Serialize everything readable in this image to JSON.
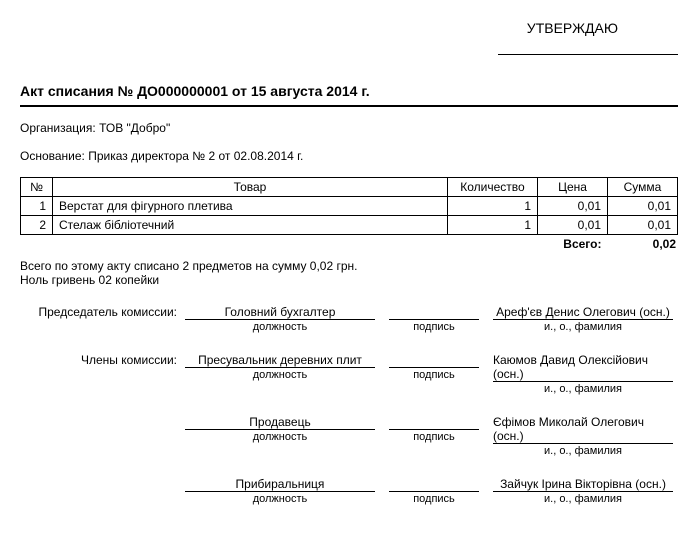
{
  "approve": "УТВЕРЖДАЮ",
  "title": "Акт списания № ДО000000001 от 15 августа 2014 г.",
  "org_label": "Организация:",
  "org_value": "ТОВ \"Добро\"",
  "basis_label": "Основание:",
  "basis_value": "Приказ директора № 2 от 02.08.2014 г.",
  "table": {
    "headers": {
      "num": "№",
      "name": "Товар",
      "qty": "Количество",
      "price": "Цена",
      "sum": "Сумма"
    },
    "rows": [
      {
        "num": "1",
        "name": "Верстат для фігурного плетива",
        "qty": "1",
        "price": "0,01",
        "sum": "0,01"
      },
      {
        "num": "2",
        "name": "Стелаж бібліотечний",
        "qty": "1",
        "price": "0,01",
        "sum": "0,01"
      }
    ],
    "total_label": "Всего:",
    "total_value": "0,02"
  },
  "summary1": "Всего по этому акту списано 2 предметов на сумму 0,02 грн.",
  "summary2": "Ноль гривень 02 копейки",
  "sig_labels": {
    "position": "должность",
    "sign": "подпись",
    "name": "и., о., фамилия"
  },
  "signatures": [
    {
      "role": "Председатель комиссии:",
      "position": "Головний бухгалтер",
      "name": "Ареф'єв Денис Олегович (осн.)"
    },
    {
      "role": "Члены комиссии:",
      "position": "Пресувальник деревних плит",
      "name": "Каюмов Давид Олексійович (осн.)"
    },
    {
      "role": "",
      "position": "Продавець",
      "name": "Єфімов Миколай Олегович (осн.)"
    },
    {
      "role": "",
      "position": "Прибиральниця",
      "name": "Зайчук Ірина Вікторівна (осн.)"
    }
  ]
}
